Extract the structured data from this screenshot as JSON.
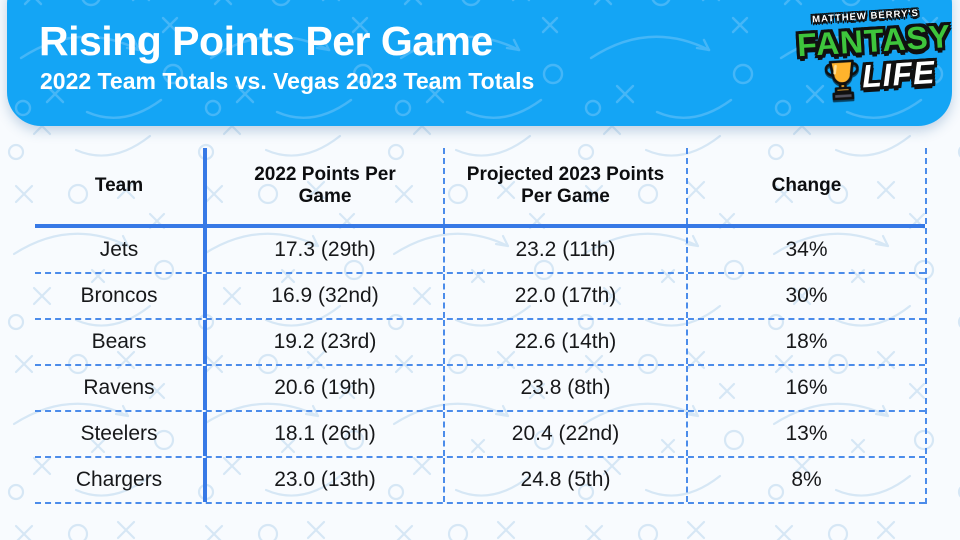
{
  "header": {
    "title": "Rising Points Per Game",
    "subtitle": "2022 Team Totals vs. Vegas 2023 Team Totals"
  },
  "logo": {
    "brand_top": "MATTHEW BERRY'S",
    "brand_word1": "FANTASY",
    "brand_word2": "LIFE",
    "trophy_icon": "trophy-icon",
    "colors": {
      "green": "#3ec53c",
      "white": "#ffffff",
      "gold": "#ffb32c"
    }
  },
  "colors": {
    "banner_blue": "#14a5f5",
    "table_line_solid": "#3779e6",
    "table_line_dashed": "#4c8cea",
    "page_background": "#f8fbfe",
    "text_dark": "#17181a"
  },
  "chart_data": {
    "type": "table",
    "title": "Rising Points Per Game",
    "subtitle": "2022 Team Totals vs. Vegas 2023 Team Totals",
    "columns": [
      "Team",
      "2022 Points Per Game",
      "Projected 2023 Points Per Game",
      "Change"
    ],
    "rows": [
      [
        "Jets",
        "17.3 (29th)",
        "23.2 (11th)",
        "34%"
      ],
      [
        "Broncos",
        "16.9 (32nd)",
        "22.0 (17th)",
        "30%"
      ],
      [
        "Bears",
        "19.2 (23rd)",
        "22.6 (14th)",
        "18%"
      ],
      [
        "Ravens",
        "20.6 (19th)",
        "23.8 (8th)",
        "16%"
      ],
      [
        "Steelers",
        "18.1 (26th)",
        "20.4 (22nd)",
        "13%"
      ],
      [
        "Chargers",
        "23.0 (13th)",
        "24.8 (5th)",
        "8%"
      ]
    ],
    "teams": [
      "Jets",
      "Broncos",
      "Bears",
      "Ravens",
      "Steelers",
      "Chargers"
    ],
    "ppg_2022": [
      17.3,
      16.9,
      19.2,
      20.6,
      18.1,
      23.0
    ],
    "rank_2022": [
      "29th",
      "32nd",
      "23rd",
      "19th",
      "26th",
      "13th"
    ],
    "ppg_2023_projected": [
      23.2,
      22.0,
      22.6,
      23.8,
      20.4,
      24.8
    ],
    "rank_2023_projected": [
      "11th",
      "17th",
      "14th",
      "8th",
      "22nd",
      "5th"
    ],
    "change_pct": [
      34,
      30,
      18,
      16,
      13,
      8
    ],
    "legend_position": "none",
    "grid": "blue solid/dashed rules"
  }
}
